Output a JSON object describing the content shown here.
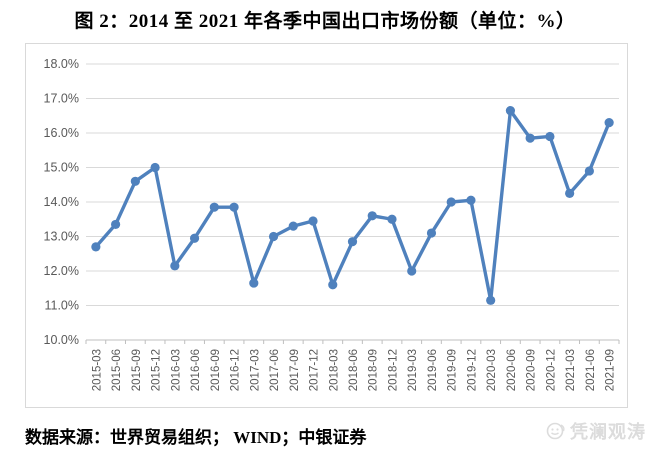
{
  "page": {
    "title": "图 2：2014 至 2021 年各季中国出口市场份额（单位：%）"
  },
  "footer": {
    "source": "数据来源：世界贸易组织；  WIND；中银证券",
    "watermark": "凭澜观涛"
  },
  "colors": {
    "line": "#4F81BD",
    "grid": "#d9d9d9",
    "axis_line": "#bfbfbf",
    "axis_text": "#595959",
    "border": "#d9d9d9",
    "watermark": "#dcdcdc"
  },
  "chart_data": {
    "type": "line",
    "title": "图 2：2014 至 2021 年各季中国出口市场份额（单位：%）",
    "xlabel": "",
    "ylabel": "",
    "ylim": [
      10.0,
      18.0
    ],
    "y_ticks": [
      "18.0%",
      "17.0%",
      "16.0%",
      "15.0%",
      "14.0%",
      "13.0%",
      "12.0%",
      "11.0%",
      "10.0%"
    ],
    "grid": true,
    "legend": false,
    "categories": [
      "2015-03",
      "2015-06",
      "2015-09",
      "2015-12",
      "2016-03",
      "2016-06",
      "2016-09",
      "2016-12",
      "2017-03",
      "2017-06",
      "2017-09",
      "2017-12",
      "2018-03",
      "2018-06",
      "2018-09",
      "2018-12",
      "2019-03",
      "2019-06",
      "2019-09",
      "2019-12",
      "2020-03",
      "2020-06",
      "2020-09",
      "2020-12",
      "2021-03",
      "2021-06",
      "2021-09"
    ],
    "values": [
      12.7,
      13.35,
      14.6,
      15.0,
      12.15,
      12.95,
      13.85,
      13.85,
      11.65,
      13.0,
      13.3,
      13.45,
      11.6,
      12.85,
      13.6,
      13.5,
      12.0,
      13.1,
      14.0,
      14.05,
      11.15,
      16.65,
      15.85,
      15.9,
      14.25,
      14.9,
      16.3
    ]
  }
}
